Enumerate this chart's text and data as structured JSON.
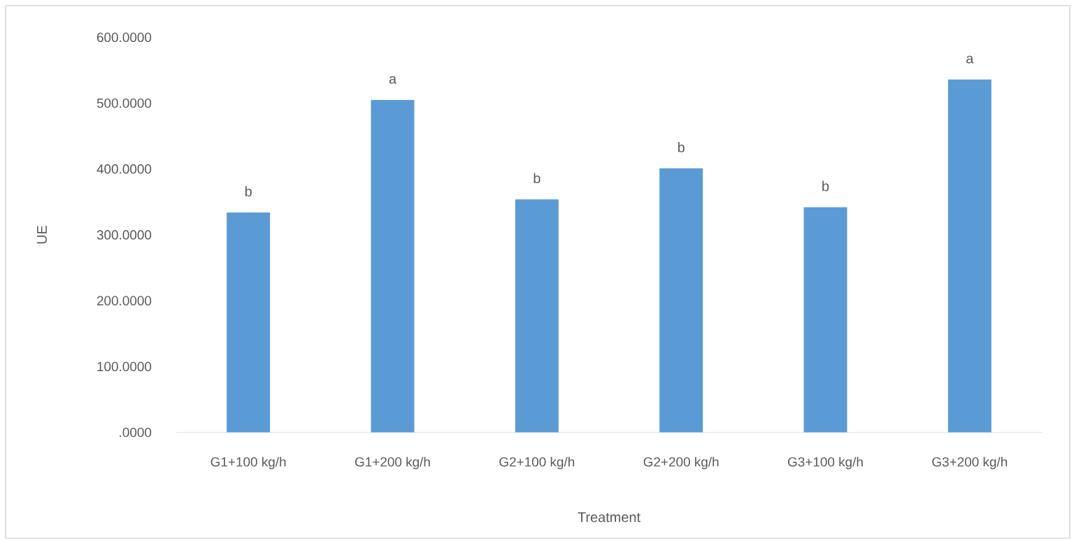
{
  "chart_data": {
    "type": "bar",
    "xlabel": "Treatment",
    "ylabel": "UE",
    "categories": [
      "G1+100 kg/h",
      "G1+200 kg/h",
      "G2+100 kg/h",
      "G2+200 kg/h",
      "G3+100 kg/h",
      "G3+200 kg/h"
    ],
    "values": [
      334,
      505,
      354,
      401,
      342,
      536
    ],
    "color": "#5b9bd5",
    "ylim": [
      0,
      600
    ],
    "yticks": [
      {
        "value": 0,
        "label": ".0000"
      },
      {
        "value": 100,
        "label": "100.0000"
      },
      {
        "value": 200,
        "label": "200.0000"
      },
      {
        "value": 300,
        "label": "300.0000"
      },
      {
        "value": 400,
        "label": "400.0000"
      },
      {
        "value": 500,
        "label": "500.0000"
      },
      {
        "value": 600,
        "label": "600.0000"
      }
    ],
    "annotations": [
      {
        "text": "b",
        "x": "G1+100 kg/h",
        "y": 334
      },
      {
        "text": "a",
        "x": "G1+200 kg/h",
        "y": 505
      },
      {
        "text": "b",
        "x": "G2+100 kg/h",
        "y": 354
      },
      {
        "text": "b",
        "x": "G2+200 kg/h",
        "y": 401
      },
      {
        "text": "b",
        "x": "G3+100 kg/h",
        "y": 342
      },
      {
        "text": "a",
        "x": "G3+200 kg/h",
        "y": 536
      }
    ]
  }
}
